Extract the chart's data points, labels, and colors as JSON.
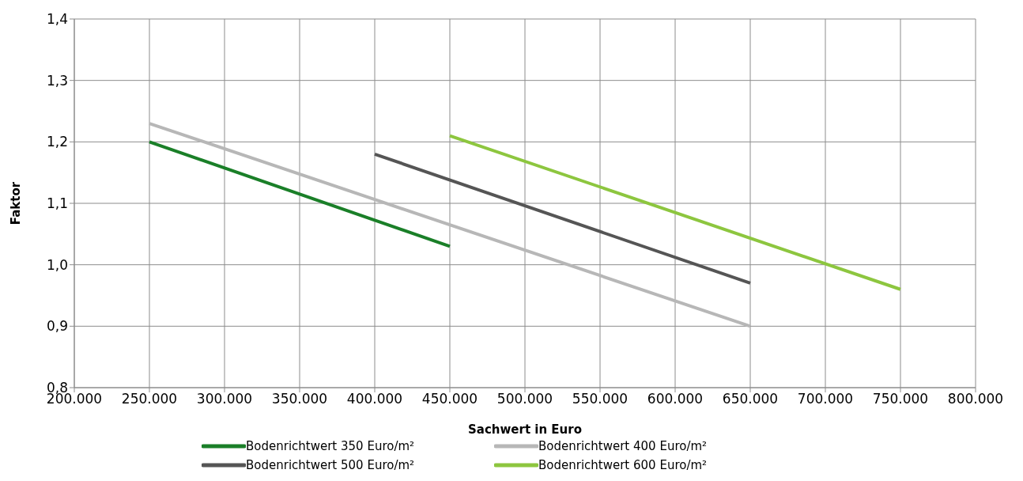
{
  "chart_data": {
    "type": "line",
    "xlabel": "Sachwert in Euro",
    "ylabel": "Faktor",
    "xlim": [
      200000,
      800000
    ],
    "xticks": [
      {
        "value": 200000,
        "label": "200.000"
      },
      {
        "value": 250000,
        "label": "250.000"
      },
      {
        "value": 300000,
        "label": "300.000"
      },
      {
        "value": 350000,
        "label": "350.000"
      },
      {
        "value": 400000,
        "label": "400.000"
      },
      {
        "value": 450000,
        "label": "450.000"
      },
      {
        "value": 500000,
        "label": "500.000"
      },
      {
        "value": 550000,
        "label": "550.000"
      },
      {
        "value": 600000,
        "label": "600.000"
      },
      {
        "value": 650000,
        "label": "650.000"
      },
      {
        "value": 700000,
        "label": "700.000"
      },
      {
        "value": 750000,
        "label": "750.000"
      },
      {
        "value": 800000,
        "label": "800.000"
      }
    ],
    "ylim": [
      0.8,
      1.4
    ],
    "yticks": [
      {
        "value": 0.8,
        "label": "0,8"
      },
      {
        "value": 0.9,
        "label": "0,9"
      },
      {
        "value": 1.0,
        "label": "1,0"
      },
      {
        "value": 1.1,
        "label": "1,1"
      },
      {
        "value": 1.2,
        "label": "1,2"
      },
      {
        "value": 1.3,
        "label": "1,3"
      },
      {
        "value": 1.4,
        "label": "1,4"
      }
    ],
    "grid": true,
    "legend": "bottom",
    "marker": "none",
    "line_style": "solid",
    "series": [
      {
        "name": "Bodenrichtwert 350 Euro/m²",
        "color": "#1a7f28",
        "x": [
          250000,
          450000
        ],
        "values": [
          1.2,
          1.03
        ]
      },
      {
        "name": "Bodenrichtwert 400 Euro/m²",
        "color": "#b7b7b7",
        "x": [
          250000,
          650000
        ],
        "values": [
          1.23,
          0.9
        ]
      },
      {
        "name": "Bodenrichtwert 500 Euro/m²",
        "color": "#555555",
        "x": [
          400000,
          650000
        ],
        "values": [
          1.18,
          0.97
        ]
      },
      {
        "name": "Bodenrichtwert 600 Euro/m²",
        "color": "#8dc63f",
        "x": [
          450000,
          750000
        ],
        "values": [
          1.21,
          0.96
        ]
      }
    ]
  }
}
